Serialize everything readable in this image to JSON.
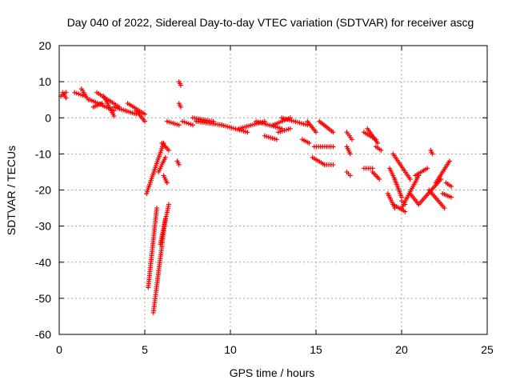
{
  "chart_data": {
    "type": "scatter",
    "title": "Day 040 of 2022, Sidereal Day-to-day VTEC variation (SDTVAR) for receiver ascg",
    "xlabel": "GPS time / hours",
    "ylabel": "SDTVAR / TECUs",
    "xlim": [
      0,
      25
    ],
    "ylim": [
      -60,
      20
    ],
    "xticks": [
      0,
      5,
      10,
      15,
      20,
      25
    ],
    "yticks": [
      -60,
      -50,
      -40,
      -30,
      -20,
      -10,
      0,
      10,
      20
    ],
    "grid": true,
    "marker": "+",
    "color": "#ff0000",
    "segments": [
      {
        "x": [
          0.1,
          0.4
        ],
        "y": [
          6,
          7
        ]
      },
      {
        "x": [
          0.2,
          0.4
        ],
        "y": [
          7,
          5.5
        ]
      },
      {
        "x": [
          0.9,
          1.5
        ],
        "y": [
          7,
          6
        ]
      },
      {
        "x": [
          1.3,
          1.7
        ],
        "y": [
          8,
          5
        ]
      },
      {
        "x": [
          1.8,
          3.2
        ],
        "y": [
          5,
          2
        ]
      },
      {
        "x": [
          2.2,
          3.5
        ],
        "y": [
          7,
          3
        ]
      },
      {
        "x": [
          2.6,
          3.2
        ],
        "y": [
          6,
          0.5
        ]
      },
      {
        "x": [
          3.2,
          4.5
        ],
        "y": [
          3,
          1
        ]
      },
      {
        "x": [
          4.5,
          5.0
        ],
        "y": [
          2,
          -1
        ]
      },
      {
        "x": [
          4.0,
          5.0
        ],
        "y": [
          4,
          1
        ]
      },
      {
        "x": [
          2.0,
          2.5
        ],
        "y": [
          3,
          4
        ]
      },
      {
        "x": [
          5.1,
          6.1
        ],
        "y": [
          -21,
          -7
        ]
      },
      {
        "x": [
          5.2,
          5.7
        ],
        "y": [
          -47,
          -25
        ]
      },
      {
        "x": [
          5.5,
          6.2
        ],
        "y": [
          -54,
          -28
        ]
      },
      {
        "x": [
          5.9,
          6.4
        ],
        "y": [
          -35,
          -24
        ]
      },
      {
        "x": [
          5.8,
          6.2
        ],
        "y": [
          -15,
          -11
        ]
      },
      {
        "x": [
          6.0,
          6.4
        ],
        "y": [
          -7,
          -9
        ]
      },
      {
        "x": [
          6.1,
          6.3
        ],
        "y": [
          -16,
          -18
        ]
      },
      {
        "x": [
          7.0,
          7.1
        ],
        "y": [
          10,
          9
        ]
      },
      {
        "x": [
          7.0,
          7.1
        ],
        "y": [
          4,
          3
        ]
      },
      {
        "x": [
          6.9,
          7.0
        ],
        "y": [
          -12,
          -13
        ]
      },
      {
        "x": [
          6.3,
          7.0
        ],
        "y": [
          -1,
          -2
        ]
      },
      {
        "x": [
          7.2,
          7.8
        ],
        "y": [
          -1,
          -2
        ]
      },
      {
        "x": [
          7.8,
          9.0
        ],
        "y": [
          0,
          -1
        ]
      },
      {
        "x": [
          8.0,
          9.5
        ],
        "y": [
          -1,
          -2
        ]
      },
      {
        "x": [
          9.5,
          11.0
        ],
        "y": [
          -2,
          -4
        ]
      },
      {
        "x": [
          10.5,
          12.0
        ],
        "y": [
          -3,
          -1
        ]
      },
      {
        "x": [
          11.5,
          13.0
        ],
        "y": [
          -1,
          -3
        ]
      },
      {
        "x": [
          12.5,
          13.5
        ],
        "y": [
          -2,
          0
        ]
      },
      {
        "x": [
          13.0,
          14.5
        ],
        "y": [
          0,
          -2
        ]
      },
      {
        "x": [
          12.0,
          12.7
        ],
        "y": [
          -5,
          -6
        ]
      },
      {
        "x": [
          12.8,
          13.5
        ],
        "y": [
          -4,
          -3
        ]
      },
      {
        "x": [
          14.5,
          15.0
        ],
        "y": [
          -1,
          -4
        ]
      },
      {
        "x": [
          14.2,
          14.6
        ],
        "y": [
          -6,
          -7
        ]
      },
      {
        "x": [
          15.2,
          16.0
        ],
        "y": [
          -1,
          -4
        ]
      },
      {
        "x": [
          14.9,
          16.0
        ],
        "y": [
          -8,
          -8
        ]
      },
      {
        "x": [
          14.8,
          15.5
        ],
        "y": [
          -11,
          -13
        ]
      },
      {
        "x": [
          15.5,
          16.0
        ],
        "y": [
          -13,
          -13
        ]
      },
      {
        "x": [
          16.8,
          17.1
        ],
        "y": [
          -4,
          -6
        ]
      },
      {
        "x": [
          16.8,
          17.0
        ],
        "y": [
          -8,
          -10
        ]
      },
      {
        "x": [
          16.8,
          17.0
        ],
        "y": [
          -15,
          -16
        ]
      },
      {
        "x": [
          17.8,
          18.5
        ],
        "y": [
          -4,
          -6
        ]
      },
      {
        "x": [
          17.8,
          18.3
        ],
        "y": [
          -14,
          -14
        ]
      },
      {
        "x": [
          18.0,
          18.6
        ],
        "y": [
          -3,
          -7
        ]
      },
      {
        "x": [
          18.3,
          18.7
        ],
        "y": [
          -15,
          -17
        ]
      },
      {
        "x": [
          18.5,
          18.8
        ],
        "y": [
          -8,
          -9
        ]
      },
      {
        "x": [
          19.2,
          19.6
        ],
        "y": [
          -21,
          -25
        ]
      },
      {
        "x": [
          19.3,
          19.6
        ],
        "y": [
          -14,
          -17
        ]
      },
      {
        "x": [
          19.5,
          20.2
        ],
        "y": [
          -24,
          -26
        ]
      },
      {
        "x": [
          19.6,
          20.0
        ],
        "y": [
          -17,
          -22
        ]
      },
      {
        "x": [
          19.5,
          20.5
        ],
        "y": [
          -10,
          -17
        ]
      },
      {
        "x": [
          20.5,
          21.0
        ],
        "y": [
          -21,
          -24
        ]
      },
      {
        "x": [
          20.0,
          21.0
        ],
        "y": [
          -25,
          -16
        ]
      },
      {
        "x": [
          21.0,
          22.3
        ],
        "y": [
          -24,
          -17
        ]
      },
      {
        "x": [
          20.8,
          21.5
        ],
        "y": [
          -16,
          -14
        ]
      },
      {
        "x": [
          21.6,
          22.5
        ],
        "y": [
          -20,
          -25
        ]
      },
      {
        "x": [
          22.0,
          22.8
        ],
        "y": [
          -18,
          -12
        ]
      },
      {
        "x": [
          22.4,
          22.9
        ],
        "y": [
          -21,
          -22
        ]
      },
      {
        "x": [
          22.6,
          22.9
        ],
        "y": [
          -18,
          -19
        ]
      },
      {
        "x": [
          21.7,
          21.8
        ],
        "y": [
          -9,
          -10
        ]
      },
      {
        "x": [
          20.0,
          20.2
        ],
        "y": [
          -23,
          -24
        ]
      }
    ]
  }
}
